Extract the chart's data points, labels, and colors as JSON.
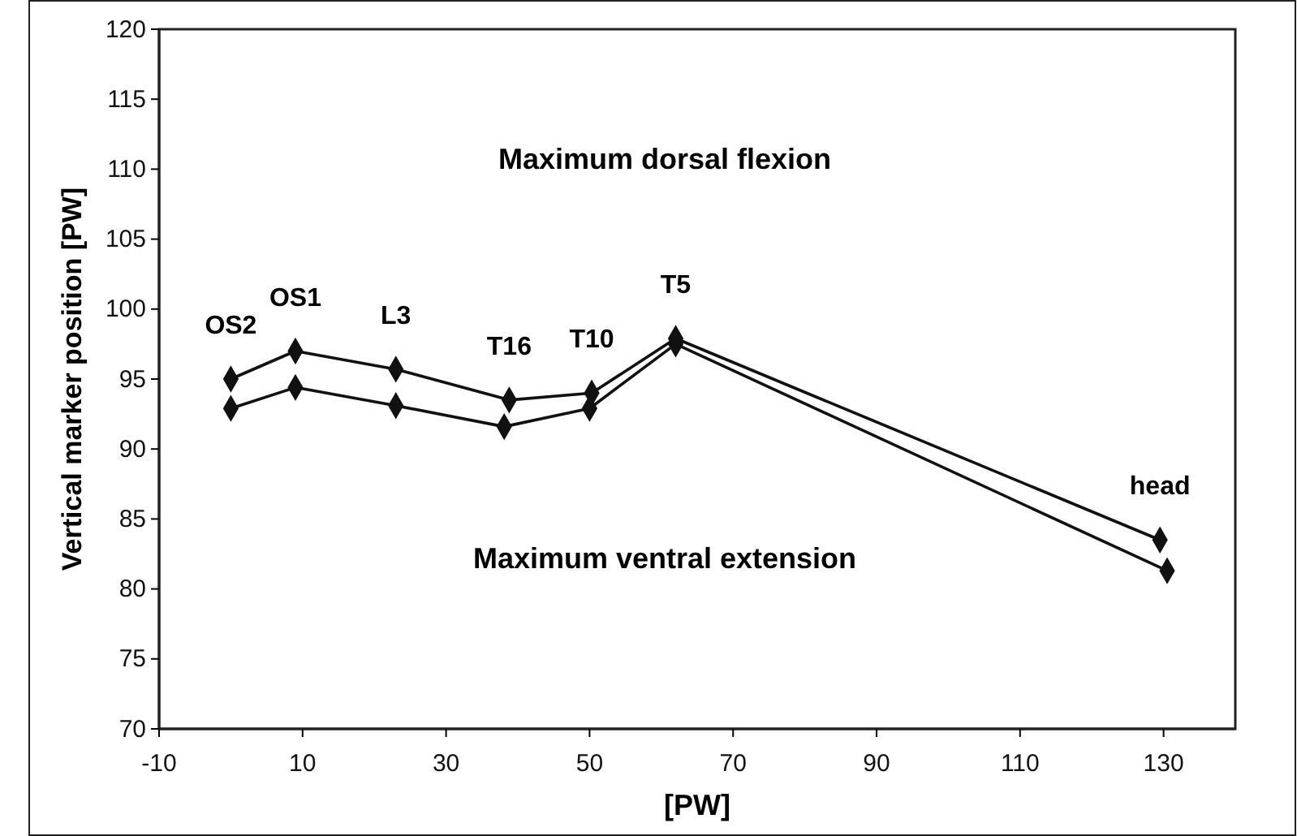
{
  "chart_data": {
    "type": "line",
    "xlabel": "[PW]",
    "ylabel": "Vertical marker position [PW]",
    "xlim": [
      -10,
      140
    ],
    "xticks": [
      -10,
      10,
      30,
      50,
      70,
      90,
      110,
      130
    ],
    "ylim": [
      70,
      120
    ],
    "yticks": [
      70,
      75,
      80,
      85,
      90,
      95,
      100,
      105,
      110,
      115,
      120
    ],
    "grid": false,
    "marker": "diamond",
    "line_style": "solid",
    "series": [
      {
        "color": "#111111",
        "x": [
          0,
          9,
          23,
          38.8,
          50.3,
          62,
          129.5
        ],
        "values": [
          95,
          97,
          95.7,
          93.5,
          94,
          97.9,
          83.5
        ]
      },
      {
        "color": "#111111",
        "x": [
          0,
          9,
          23,
          38.1,
          50,
          62,
          130.5
        ],
        "values": [
          92.9,
          94.4,
          93.1,
          91.6,
          92.9,
          97.5,
          81.3
        ]
      }
    ],
    "annotations": [
      "Maximum dorsal flexion",
      "Maximum ventral extension",
      {
        "text": "OS2",
        "x": 0,
        "y": 95
      },
      {
        "text": "OS1",
        "x": 9,
        "y": 97
      },
      {
        "text": "L3",
        "x": 23,
        "y": 95.7
      },
      {
        "text": "T16",
        "x": 38.8,
        "y": 93.5
      },
      {
        "text": "T10",
        "x": 50.3,
        "y": 94
      },
      {
        "text": "T5",
        "x": 62,
        "y": 97.9
      },
      {
        "text": "head",
        "x": 129.5,
        "y": 83.5
      }
    ]
  }
}
